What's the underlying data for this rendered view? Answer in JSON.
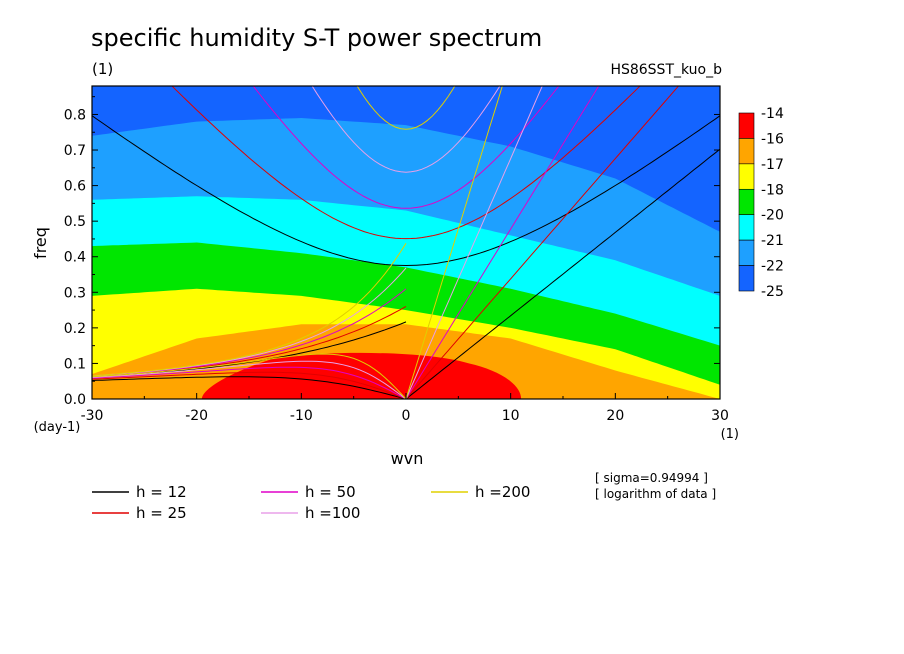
{
  "header": {
    "title": "specific humidity S-T power spectrum",
    "units": "(1)",
    "run_name": "HS86SST_kuo_b"
  },
  "axes": {
    "ylabel": "freq",
    "xlabel": "wvn",
    "yunit": "(day-1)",
    "xunit": "(1)"
  },
  "notes": {
    "sigma": "[ sigma=0.94994 ]",
    "log": "[ logarithm of data ]"
  },
  "colorbar": {
    "labels": [
      "-14",
      "-16",
      "-17",
      "-18",
      "-20",
      "-21",
      "-22",
      "-25"
    ],
    "colors": [
      "#ff0000",
      "#ffa500",
      "#ffff00",
      "#00e600",
      "#00ffff",
      "#1ea0ff",
      "#1464ff"
    ]
  },
  "legend": [
    {
      "label": "h = 12",
      "color": "#000000"
    },
    {
      "label": "h = 25",
      "color": "#e00000"
    },
    {
      "label": "h = 50",
      "color": "#e000c8"
    },
    {
      "label": "h =100",
      "color": "#e8a0e8"
    },
    {
      "label": "h =200",
      "color": "#e0d000"
    }
  ],
  "chart_data": {
    "type": "heatmap",
    "title": "specific humidity S-T power spectrum",
    "xlabel": "wvn",
    "ylabel": "freq",
    "xlim": [
      -30,
      30
    ],
    "ylim": [
      0.0,
      0.88
    ],
    "xticks": [
      "-30",
      "-20",
      "-10",
      "0",
      "10",
      "20",
      "30"
    ],
    "yticks": [
      "0.0",
      "0.1",
      "0.2",
      "0.3",
      "0.4",
      "0.5",
      "0.6",
      "0.7",
      "0.8"
    ],
    "levels": [
      -25,
      -22,
      -21,
      -20,
      -18,
      -17,
      -16,
      -14
    ],
    "scale": "logarithm of data",
    "fill_boundaries": [
      {
        "upper_level": -14,
        "lower_level": -16,
        "region": "red blob",
        "x_range": [
          -19.5,
          11
        ],
        "peak_freq": 0.13
      },
      {
        "upper_level": -16,
        "lower_level": -17,
        "x": [
          -30,
          -20,
          -10,
          0,
          10,
          20,
          30
        ],
        "freq": [
          0.07,
          0.17,
          0.21,
          0.21,
          0.17,
          0.08,
          0.0
        ]
      },
      {
        "upper_level": -17,
        "lower_level": -18,
        "x": [
          -30,
          -20,
          -10,
          0,
          10,
          20,
          30
        ],
        "freq": [
          0.29,
          0.31,
          0.29,
          0.25,
          0.2,
          0.14,
          0.04
        ]
      },
      {
        "upper_level": -18,
        "lower_level": -20,
        "x": [
          -30,
          -20,
          -10,
          0,
          10,
          20,
          30
        ],
        "freq": [
          0.43,
          0.44,
          0.41,
          0.37,
          0.31,
          0.24,
          0.15
        ]
      },
      {
        "upper_level": -20,
        "lower_level": -21,
        "x": [
          -30,
          -20,
          -10,
          0,
          10,
          20,
          30
        ],
        "freq": [
          0.56,
          0.57,
          0.56,
          0.53,
          0.46,
          0.39,
          0.29
        ]
      },
      {
        "upper_level": -21,
        "lower_level": -22,
        "x": [
          -30,
          -20,
          -10,
          0,
          10,
          20,
          30
        ],
        "freq": [
          0.74,
          0.78,
          0.79,
          0.77,
          0.71,
          0.62,
          0.47
        ]
      }
    ],
    "dispersion_curves": [
      {
        "name": "h = 12",
        "color": "#000000"
      },
      {
        "name": "h = 25",
        "color": "#e00000"
      },
      {
        "name": "h = 50",
        "color": "#e000c8"
      },
      {
        "name": "h =100",
        "color": "#e8a0e8"
      },
      {
        "name": "h =200",
        "color": "#e0d000"
      }
    ],
    "equivalent_depths": [
      12,
      25,
      50,
      100,
      200
    ]
  }
}
